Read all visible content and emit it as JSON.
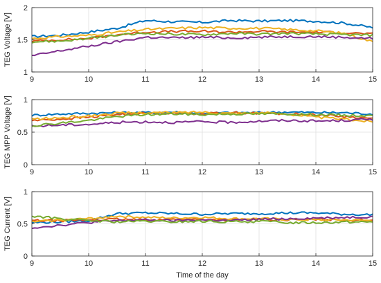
{
  "chart_data": [
    {
      "type": "line",
      "ylabel": "TEG Voltage [V]",
      "xlabel": "",
      "xlim": [
        9,
        15
      ],
      "ylim": [
        1,
        2
      ],
      "xticks": [
        "9",
        "10",
        "11",
        "12",
        "13",
        "14",
        "15"
      ],
      "yticks": [
        "1",
        "1.5",
        "2"
      ],
      "grid": true,
      "x": [
        9,
        9.5,
        10,
        10.5,
        11,
        11.5,
        12,
        12.5,
        13,
        13.5,
        14,
        14.5,
        15
      ],
      "series": [
        {
          "color": "#0072BD",
          "values": [
            1.55,
            1.57,
            1.62,
            1.68,
            1.8,
            1.78,
            1.77,
            1.8,
            1.79,
            1.8,
            1.79,
            1.76,
            1.69
          ]
        },
        {
          "color": "#D95319",
          "values": [
            1.48,
            1.5,
            1.52,
            1.58,
            1.62,
            1.63,
            1.63,
            1.62,
            1.63,
            1.62,
            1.62,
            1.61,
            1.59
          ]
        },
        {
          "color": "#EDB120",
          "values": [
            1.52,
            1.55,
            1.57,
            1.62,
            1.66,
            1.68,
            1.69,
            1.68,
            1.68,
            1.66,
            1.64,
            1.6,
            1.47
          ]
        },
        {
          "color": "#7E2F8E",
          "values": [
            1.25,
            1.33,
            1.4,
            1.47,
            1.54,
            1.53,
            1.54,
            1.53,
            1.54,
            1.55,
            1.55,
            1.54,
            1.52
          ]
        },
        {
          "color": "#77AC30",
          "values": [
            1.47,
            1.48,
            1.52,
            1.57,
            1.6,
            1.59,
            1.58,
            1.6,
            1.59,
            1.6,
            1.59,
            1.58,
            1.57
          ]
        }
      ]
    },
    {
      "type": "line",
      "ylabel": "TEG MPP Voltage [V]",
      "xlabel": "",
      "xlim": [
        9,
        15
      ],
      "ylim": [
        0,
        1
      ],
      "xticks": [
        "9",
        "10",
        "11",
        "12",
        "13",
        "14",
        "15"
      ],
      "yticks": [
        "0",
        "0.5",
        "1"
      ],
      "grid": true,
      "x": [
        9,
        9.5,
        10,
        10.5,
        11,
        11.5,
        12,
        12.5,
        13,
        13.5,
        14,
        14.5,
        15
      ],
      "series": [
        {
          "color": "#0072BD",
          "values": [
            0.76,
            0.78,
            0.79,
            0.8,
            0.8,
            0.81,
            0.79,
            0.8,
            0.8,
            0.81,
            0.8,
            0.8,
            0.78
          ]
        },
        {
          "color": "#D95319",
          "values": [
            0.68,
            0.7,
            0.73,
            0.77,
            0.79,
            0.8,
            0.78,
            0.8,
            0.79,
            0.78,
            0.77,
            0.74,
            0.71
          ]
        },
        {
          "color": "#EDB120",
          "values": [
            0.7,
            0.72,
            0.75,
            0.79,
            0.8,
            0.8,
            0.81,
            0.79,
            0.8,
            0.78,
            0.73,
            0.7,
            0.66
          ]
        },
        {
          "color": "#7E2F8E",
          "values": [
            0.59,
            0.61,
            0.62,
            0.65,
            0.66,
            0.65,
            0.66,
            0.65,
            0.67,
            0.68,
            0.67,
            0.68,
            0.7
          ]
        },
        {
          "color": "#77AC30",
          "values": [
            0.6,
            0.64,
            0.68,
            0.74,
            0.77,
            0.78,
            0.77,
            0.78,
            0.78,
            0.78,
            0.77,
            0.76,
            0.75
          ]
        }
      ]
    },
    {
      "type": "line",
      "ylabel": "TEG Current [V]",
      "xlabel": "Time of the day",
      "xlim": [
        9,
        15
      ],
      "ylim": [
        0,
        1
      ],
      "xticks": [
        "9",
        "10",
        "11",
        "12",
        "13",
        "14",
        "15"
      ],
      "yticks": [
        "0",
        "0.5",
        "1"
      ],
      "grid": true,
      "x": [
        9,
        9.5,
        10,
        10.5,
        11,
        11.5,
        12,
        12.5,
        13,
        13.5,
        14,
        14.5,
        15
      ],
      "series": [
        {
          "color": "#0072BD",
          "values": [
            0.52,
            0.53,
            0.55,
            0.66,
            0.67,
            0.66,
            0.65,
            0.66,
            0.66,
            0.67,
            0.67,
            0.65,
            0.64
          ]
        },
        {
          "color": "#D95319",
          "values": [
            0.55,
            0.55,
            0.56,
            0.57,
            0.56,
            0.57,
            0.57,
            0.56,
            0.57,
            0.56,
            0.57,
            0.56,
            0.56
          ]
        },
        {
          "color": "#EDB120",
          "values": [
            0.53,
            0.56,
            0.58,
            0.62,
            0.6,
            0.59,
            0.6,
            0.58,
            0.58,
            0.57,
            0.56,
            0.56,
            0.55
          ]
        },
        {
          "color": "#7E2F8E",
          "values": [
            0.44,
            0.48,
            0.52,
            0.55,
            0.56,
            0.55,
            0.56,
            0.55,
            0.57,
            0.58,
            0.59,
            0.6,
            0.61
          ]
        },
        {
          "color": "#77AC30",
          "values": [
            0.62,
            0.58,
            0.55,
            0.53,
            0.54,
            0.53,
            0.54,
            0.53,
            0.54,
            0.52,
            0.52,
            0.53,
            0.53
          ]
        }
      ]
    }
  ]
}
